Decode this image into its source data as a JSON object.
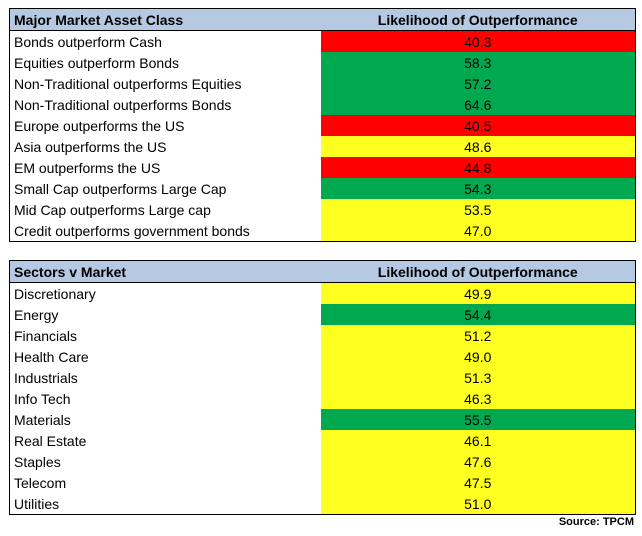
{
  "colors": {
    "header_bg": "#b6c9e2",
    "red": "#ff0000",
    "green": "#00a94f",
    "yellow": "#ffff20"
  },
  "table1": {
    "header_label": "Major Market Asset Class",
    "header_value": "Likelihood of Outperformance",
    "rows": [
      {
        "label": "Bonds outperform Cash",
        "value": "40.3",
        "color": "red"
      },
      {
        "label": "Equities outperform Bonds",
        "value": "58.3",
        "color": "green"
      },
      {
        "label": "Non-Traditional outperforms Equities",
        "value": "57.2",
        "color": "green"
      },
      {
        "label": "Non-Traditional outperforms Bonds",
        "value": "64.6",
        "color": "green"
      },
      {
        "label": "Europe outperforms the US",
        "value": "40.5",
        "color": "red"
      },
      {
        "label": "Asia outperforms the US",
        "value": "48.6",
        "color": "yellow"
      },
      {
        "label": "EM outperforms the US",
        "value": "44.8",
        "color": "red"
      },
      {
        "label": "Small Cap outperforms Large Cap",
        "value": "54.3",
        "color": "green"
      },
      {
        "label": "Mid Cap outperforms Large cap",
        "value": "53.5",
        "color": "yellow"
      },
      {
        "label": "Credit outperforms government bonds",
        "value": "47.0",
        "color": "yellow"
      }
    ]
  },
  "table2": {
    "header_label": "Sectors v Market",
    "header_value": "Likelihood of Outperformance",
    "rows": [
      {
        "label": "Discretionary",
        "value": "49.9",
        "color": "yellow"
      },
      {
        "label": "Energy",
        "value": "54.4",
        "color": "green"
      },
      {
        "label": "Financials",
        "value": "51.2",
        "color": "yellow"
      },
      {
        "label": "Health Care",
        "value": "49.0",
        "color": "yellow"
      },
      {
        "label": "Industrials",
        "value": "51.3",
        "color": "yellow"
      },
      {
        "label": "Info Tech",
        "value": "46.3",
        "color": "yellow"
      },
      {
        "label": "Materials",
        "value": "55.5",
        "color": "green"
      },
      {
        "label": "Real Estate",
        "value": "46.1",
        "color": "yellow"
      },
      {
        "label": "Staples",
        "value": "47.6",
        "color": "yellow"
      },
      {
        "label": "Telecom",
        "value": "47.5",
        "color": "yellow"
      },
      {
        "label": "Utilities",
        "value": "51.0",
        "color": "yellow"
      }
    ]
  },
  "source": "Source: TPCM"
}
